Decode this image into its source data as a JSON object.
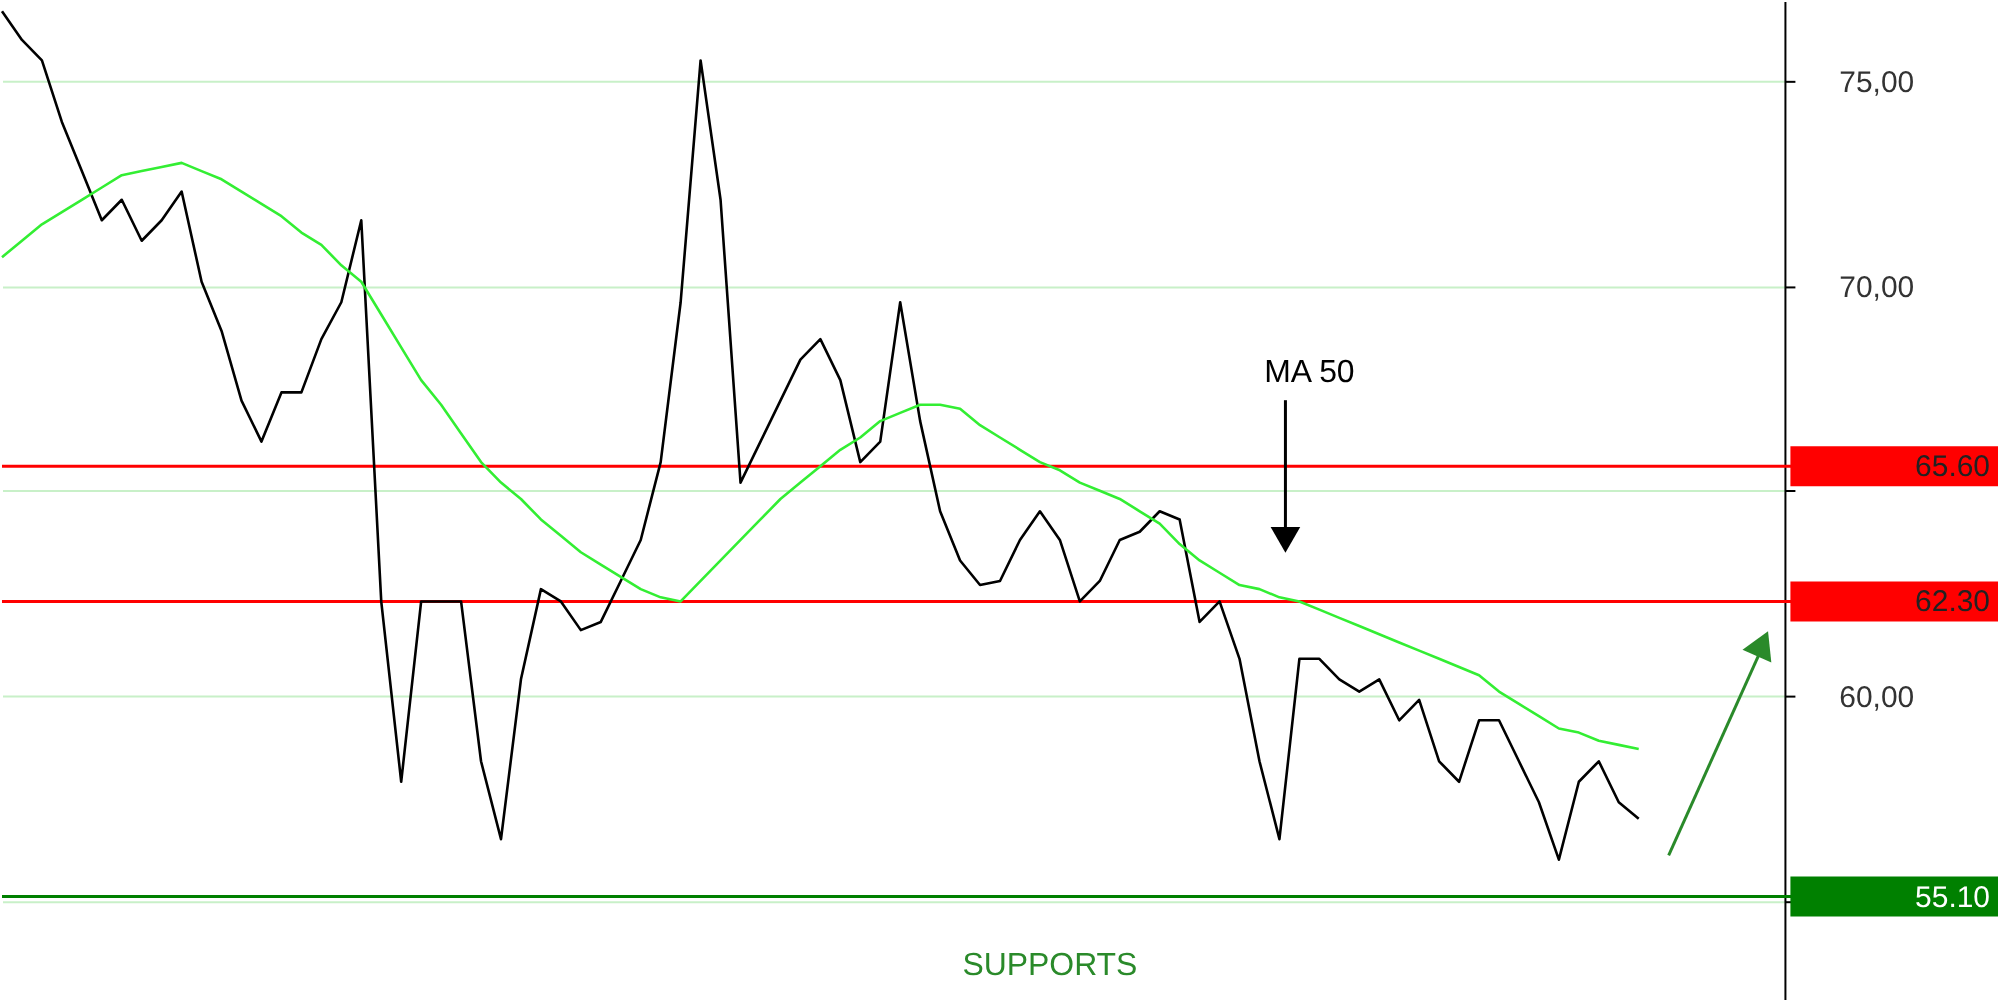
{
  "chart_data": {
    "type": "line",
    "categories": [
      null,
      null,
      null,
      null,
      null,
      null,
      null,
      null,
      null,
      null,
      null,
      null,
      null,
      null,
      null,
      null,
      null,
      null,
      null,
      null,
      null,
      null,
      null,
      null,
      null,
      null,
      null,
      null,
      null,
      null,
      null,
      null,
      null,
      null,
      null,
      null,
      null,
      null,
      null,
      null,
      null,
      null,
      null,
      null,
      null,
      null,
      null,
      null,
      null,
      null,
      null,
      null,
      null,
      null,
      null,
      null,
      null,
      null,
      null,
      null,
      null,
      null,
      null,
      null,
      null,
      null,
      null,
      null,
      null,
      null,
      null,
      null,
      null,
      null,
      null,
      null,
      null,
      null,
      null,
      null,
      null,
      null,
      null
    ],
    "series": [
      {
        "color": "#000000",
        "values": [
          76.7,
          76.0,
          75.5,
          74.0,
          72.8,
          71.6,
          72.1,
          71.1,
          71.6,
          72.3,
          70.1,
          68.9,
          67.2,
          66.2,
          67.4,
          67.4,
          68.7,
          69.6,
          71.6,
          62.3,
          57.9,
          62.3,
          62.3,
          62.3,
          58.4,
          56.5,
          60.4,
          62.6,
          62.3,
          61.6,
          61.8,
          62.8,
          63.8,
          65.7,
          69.6,
          75.5,
          72.1,
          65.2,
          66.2,
          67.2,
          68.2,
          68.7,
          67.7,
          65.7,
          66.2,
          69.6,
          66.7,
          64.5,
          63.3,
          62.7,
          62.8,
          63.8,
          64.5,
          63.8,
          62.3,
          62.8,
          63.8,
          64.0,
          64.5,
          64.3,
          61.8,
          62.3,
          60.9,
          58.4,
          56.5,
          60.9,
          60.9,
          60.4,
          60.1,
          60.4,
          59.4,
          59.9,
          58.4,
          57.9,
          59.4,
          59.4,
          58.4,
          57.4,
          56.0,
          57.9,
          58.4,
          57.4,
          57.0
        ]
      },
      {
        "color": "#33ee33",
        "values": [
          70.7,
          71.1,
          71.5,
          71.8,
          72.1,
          72.4,
          72.7,
          72.8,
          72.9,
          73.0,
          72.8,
          72.6,
          72.3,
          72.0,
          71.7,
          71.3,
          71.0,
          70.5,
          70.1,
          69.3,
          68.5,
          67.7,
          67.1,
          66.4,
          65.7,
          65.2,
          64.8,
          64.3,
          63.9,
          63.5,
          63.2,
          62.9,
          62.6,
          62.4,
          62.3,
          62.8,
          63.3,
          63.8,
          64.3,
          64.8,
          65.2,
          65.6,
          66.0,
          66.3,
          66.7,
          66.9,
          67.1,
          67.1,
          67.0,
          66.6,
          66.3,
          66.0,
          65.7,
          65.5,
          65.2,
          65.0,
          64.8,
          64.5,
          64.2,
          63.7,
          63.3,
          63.0,
          62.7,
          62.6,
          62.4,
          62.3,
          62.1,
          61.9,
          61.7,
          61.5,
          61.3,
          61.1,
          60.9,
          60.7,
          60.5,
          60.1,
          59.8,
          59.5,
          59.2,
          59.1,
          58.9,
          58.8,
          58.7
        ]
      }
    ],
    "ylim": [
      52.6,
      76.95
    ],
    "yticks": [
      {
        "value": 55,
        "label": null
      },
      {
        "value": 60,
        "label": "60,00"
      },
      {
        "value": 65,
        "label": null
      },
      {
        "value": 70,
        "label": "70,00"
      },
      {
        "value": 75,
        "label": "75,00"
      }
    ],
    "ref_lines": [
      {
        "axis": "y",
        "value": 65.6,
        "label": "65.60",
        "color": "#ff0000"
      },
      {
        "axis": "y",
        "value": 62.3,
        "label": "62.30",
        "color": "#ff0000"
      },
      {
        "axis": "y",
        "value": 55.1,
        "label": "55.10",
        "color": "#008000"
      }
    ],
    "annotations": [
      "MA 50",
      "SUPPORTS"
    ],
    "grid": "y",
    "marker": "none",
    "line_style": "solid"
  }
}
